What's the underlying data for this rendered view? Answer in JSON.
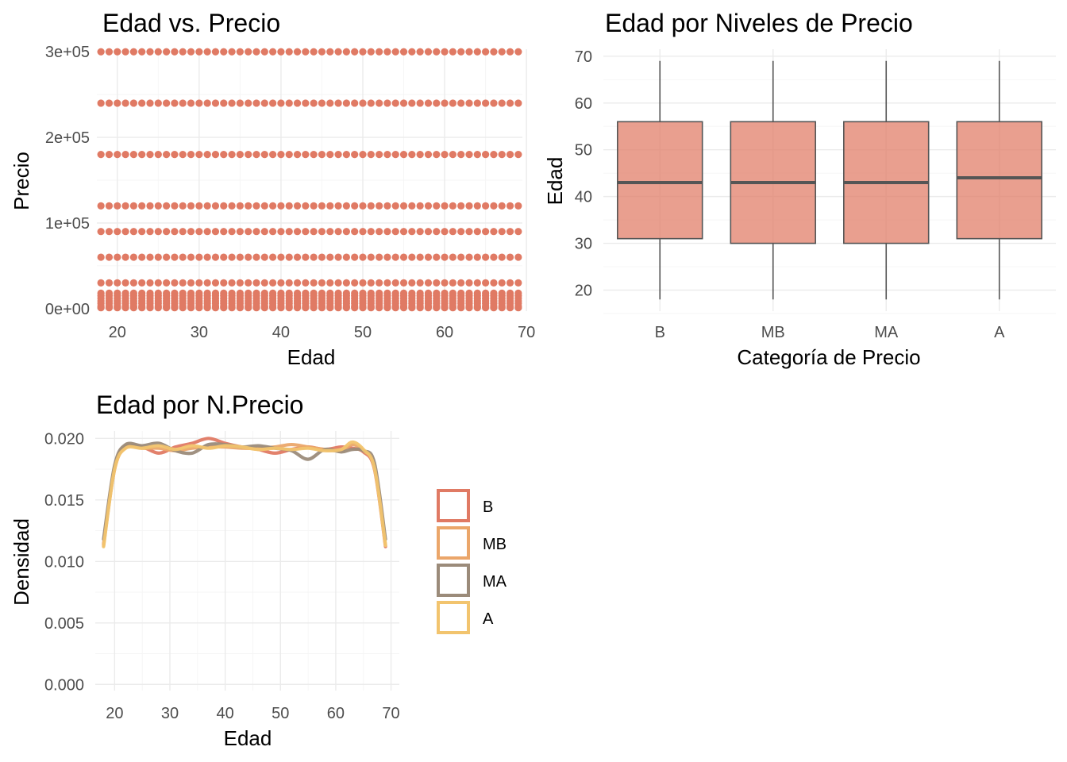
{
  "chart_data": [
    {
      "type": "scatter",
      "title": "Edad vs. Precio",
      "xlabel": "Edad",
      "ylabel": "Precio",
      "xlim": [
        17.5,
        69.5
      ],
      "ylim": [
        -3000,
        303000
      ],
      "x_ticks": [
        20,
        30,
        40,
        50,
        60,
        70
      ],
      "x_tick_labels": [
        "20",
        "30",
        "40",
        "50",
        "60",
        "70"
      ],
      "y_ticks": [
        0,
        100000,
        200000,
        300000
      ],
      "y_tick_labels": [
        "0e+00",
        "1e+05",
        "2e+05",
        "3e+05"
      ],
      "grid": true,
      "x_range": [
        18,
        69
      ],
      "price_levels": [
        300000,
        240000,
        180000,
        120000,
        90000,
        60000,
        30000,
        18000,
        15000,
        12000,
        9000,
        6000,
        3000,
        1000
      ],
      "color": "#E07A64"
    },
    {
      "type": "box",
      "title": "Edad por Niveles de Precio",
      "xlabel": "Categoría de Precio",
      "ylabel": "Edad",
      "categories": [
        "B",
        "MB",
        "MA",
        "A"
      ],
      "ylim": [
        15.5,
        71.5
      ],
      "y_ticks": [
        20,
        30,
        40,
        50,
        60,
        70
      ],
      "y_tick_labels": [
        "20",
        "30",
        "40",
        "50",
        "60",
        "70"
      ],
      "grid": true,
      "boxes": [
        {
          "category": "B",
          "min": 18,
          "q1": 31,
          "median": 43,
          "q3": 56,
          "max": 69
        },
        {
          "category": "MB",
          "min": 18,
          "q1": 30,
          "median": 43,
          "q3": 56,
          "max": 69
        },
        {
          "category": "MA",
          "min": 18,
          "q1": 30,
          "median": 43,
          "q3": 56,
          "max": 69
        },
        {
          "category": "A",
          "min": 18,
          "q1": 31,
          "median": 44,
          "q3": 56,
          "max": 69
        }
      ],
      "fill": "#E07A64",
      "stroke": "#555555"
    },
    {
      "type": "line",
      "title": "Edad por N.Precio",
      "xlabel": "Edad",
      "ylabel": "Densidad",
      "xlim": [
        16.5,
        71.5
      ],
      "ylim": [
        -0.0005,
        0.0206
      ],
      "x_ticks": [
        20,
        30,
        40,
        50,
        60,
        70
      ],
      "x_tick_labels": [
        "20",
        "30",
        "40",
        "50",
        "60",
        "70"
      ],
      "y_ticks": [
        0,
        0.005,
        0.01,
        0.015,
        0.02
      ],
      "y_tick_labels": [
        "0.000",
        "0.005",
        "0.010",
        "0.015",
        "0.020"
      ],
      "grid": true,
      "legend_position": "right",
      "x": [
        18,
        20,
        22,
        25,
        28,
        31,
        34,
        37,
        40,
        43,
        46,
        49,
        52,
        55,
        58,
        61,
        63,
        65,
        67,
        69
      ],
      "series": [
        {
          "name": "B",
          "color": "#E07A64",
          "values": [
            0.0114,
            0.0175,
            0.0193,
            0.0193,
            0.0188,
            0.0193,
            0.0196,
            0.02,
            0.0196,
            0.0193,
            0.0191,
            0.0188,
            0.0191,
            0.0193,
            0.0191,
            0.0193,
            0.0192,
            0.0189,
            0.0175,
            0.0112
          ]
        },
        {
          "name": "MB",
          "color": "#EBA66A",
          "values": [
            0.0113,
            0.0176,
            0.0194,
            0.0192,
            0.0192,
            0.019,
            0.0192,
            0.0193,
            0.0193,
            0.0192,
            0.0192,
            0.0193,
            0.0195,
            0.0193,
            0.0191,
            0.019,
            0.0195,
            0.019,
            0.0177,
            0.0113
          ]
        },
        {
          "name": "MA",
          "color": "#9B8B7A",
          "values": [
            0.0118,
            0.0178,
            0.0195,
            0.0194,
            0.0196,
            0.019,
            0.0188,
            0.0195,
            0.0195,
            0.0193,
            0.0194,
            0.0192,
            0.019,
            0.0183,
            0.0191,
            0.0189,
            0.0191,
            0.019,
            0.018,
            0.0118
          ]
        },
        {
          "name": "A",
          "color": "#F2C46E",
          "values": [
            0.0112,
            0.0175,
            0.0192,
            0.0192,
            0.0194,
            0.0191,
            0.0194,
            0.0192,
            0.0194,
            0.0193,
            0.0191,
            0.0192,
            0.0191,
            0.0192,
            0.019,
            0.0191,
            0.0197,
            0.0191,
            0.0176,
            0.0113
          ]
        }
      ]
    }
  ]
}
